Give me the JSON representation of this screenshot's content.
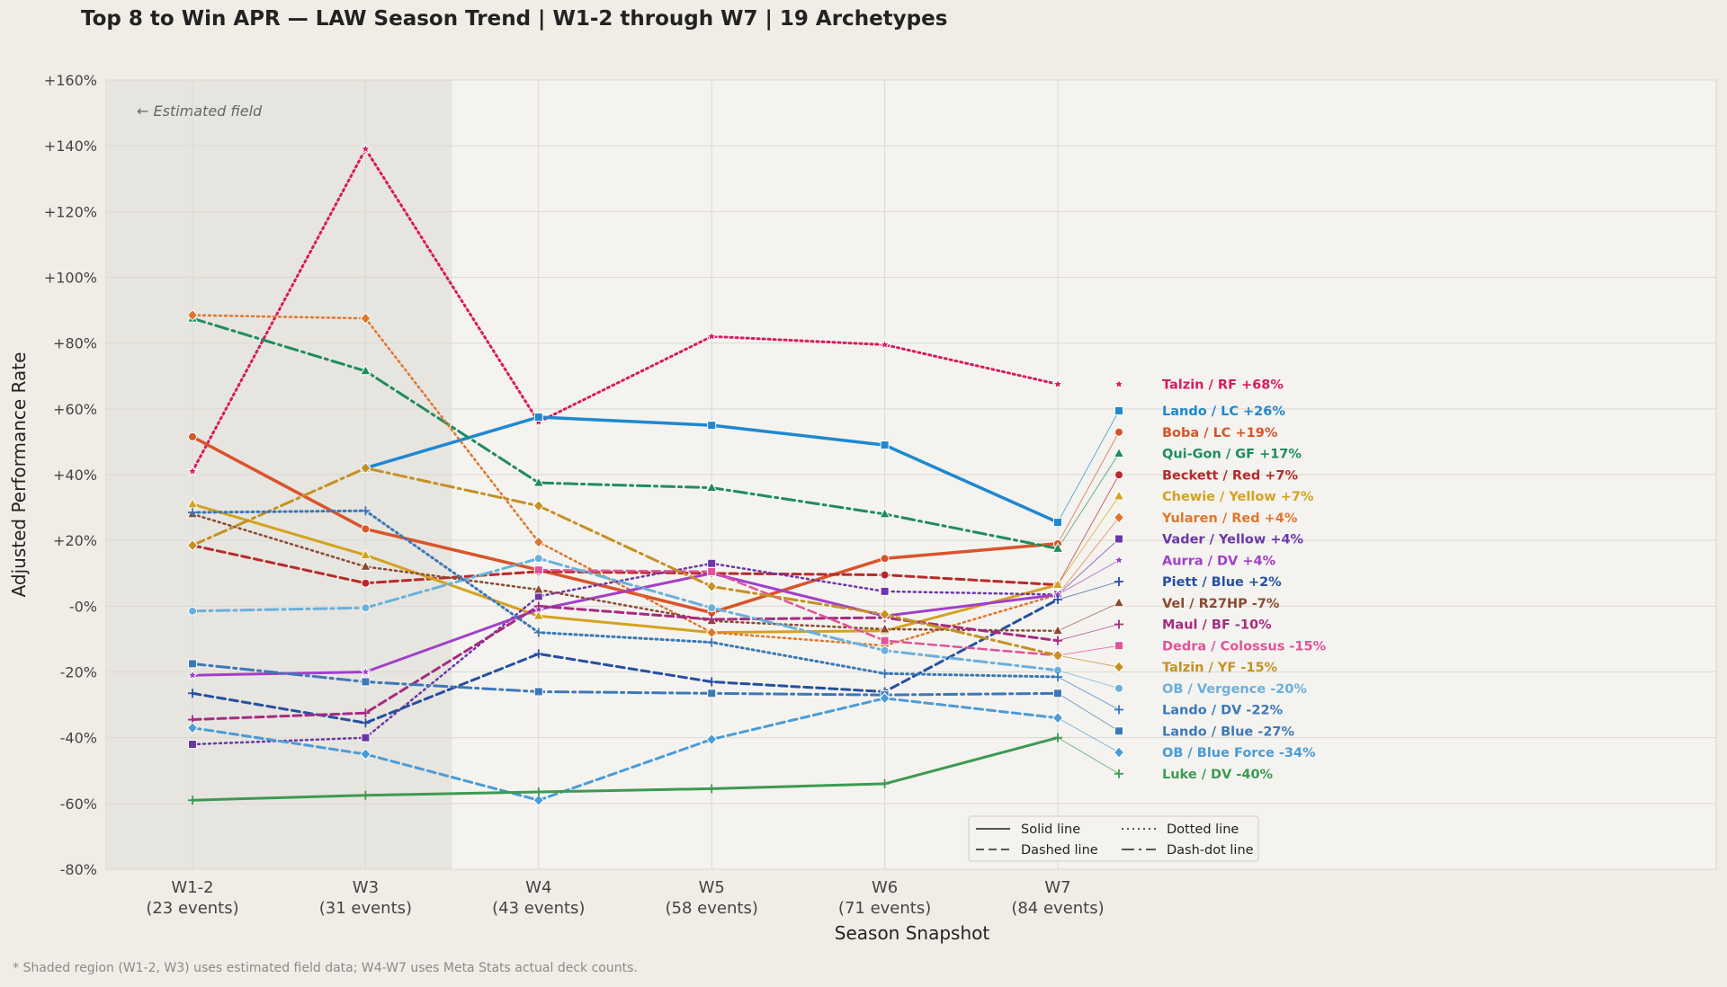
{
  "title": "Top 8 to Win APR — LAW Season Trend  |  W1-2 through W7  |  19 Archetypes",
  "footnote": "* Shaded region (W1-2, W3) uses estimated field data; W4-W7 uses Meta Stats actual deck counts.",
  "chart_data": {
    "type": "line",
    "title": "Top 8 to Win APR — LAW Season Trend  |  W1-2 through W7  |  19 Archetypes",
    "xlabel": "Season Snapshot",
    "ylabel": "Adjusted Performance Rate",
    "categories": [
      "W1-2",
      "W3",
      "W4",
      "W5",
      "W6",
      "W7"
    ],
    "category_sublabels": [
      "(23 events)",
      "(31 events)",
      "(43 events)",
      "(58 events)",
      "(71 events)",
      "(84 events)"
    ],
    "ylim": [
      -80,
      160
    ],
    "yticks": [
      -80,
      -60,
      -40,
      -20,
      0,
      20,
      40,
      60,
      80,
      100,
      120,
      140,
      160
    ],
    "ytick_labels": [
      "-80%",
      "-60%",
      "-40%",
      "-20%",
      "-0%",
      "+20%",
      "+40%",
      "+60%",
      "+80%",
      "+100%",
      "+120%",
      "+140%",
      "+160%"
    ],
    "grid": true,
    "shaded_region": {
      "from": "W1-2",
      "to": "W3",
      "label": "← Estimated field"
    },
    "legend_position": "bottom-center",
    "legend": [
      {
        "label": "Solid line",
        "style": "solid"
      },
      {
        "label": "Dotted line",
        "style": "dotted"
      },
      {
        "label": "Dashed line",
        "style": "dashed"
      },
      {
        "label": "Dash-dot line",
        "style": "dashdot"
      }
    ],
    "series": [
      {
        "name": "Talzin / RF",
        "end_label": "Talzin / RF  +68%",
        "color": "#d81b60",
        "style": "dotted",
        "marker": "star",
        "width": 3,
        "values": [
          41,
          139,
          56,
          82,
          79.5,
          67.5
        ]
      },
      {
        "name": "Lando / LC",
        "end_label": "Lando / LC  +26%",
        "color": "#1e88d0",
        "style": "solid",
        "marker": "square",
        "width": 3.5,
        "values": [
          null,
          42,
          57.5,
          55,
          49,
          25.5
        ]
      },
      {
        "name": "Boba / LC",
        "end_label": "Boba / LC  +19%",
        "color": "#d9542b",
        "style": "solid",
        "marker": "circle",
        "width": 3.5,
        "values": [
          51.5,
          23.5,
          11,
          -2,
          14.5,
          19
        ]
      },
      {
        "name": "Qui-Gon / GF",
        "end_label": "Qui-Gon / GF  +17%",
        "color": "#1f8c5e",
        "style": "dashdot",
        "marker": "triangle",
        "width": 3,
        "values": [
          87.5,
          71.5,
          37.5,
          36,
          28,
          17.5
        ]
      },
      {
        "name": "Beckett / Red",
        "end_label": "Beckett / Red  +7%",
        "color": "#b72a2a",
        "style": "dashed",
        "marker": "circle",
        "width": 3,
        "values": [
          18.5,
          7,
          10.5,
          10,
          9.5,
          6.5
        ]
      },
      {
        "name": "Chewie / Yellow",
        "end_label": "Chewie / Yellow  +7%",
        "color": "#d4a21f",
        "style": "solid",
        "marker": "triangle",
        "width": 3,
        "values": [
          31,
          15.5,
          -3,
          -8,
          -7.5,
          6.5
        ]
      },
      {
        "name": "Yularen / Red",
        "end_label": "Yularen / Red  +4%",
        "color": "#e0762e",
        "style": "dotted",
        "marker": "diamond",
        "width": 2.5,
        "values": [
          88.5,
          87.5,
          19.5,
          -8,
          -12,
          3.5
        ]
      },
      {
        "name": "Vader / Yellow",
        "end_label": "Vader / Yellow  +4%",
        "color": "#6b37a8",
        "style": "dotted",
        "marker": "square",
        "width": 2.5,
        "values": [
          -42,
          -40,
          3,
          13,
          4.5,
          3.5
        ]
      },
      {
        "name": "Aurra / DV",
        "end_label": "Aurra / DV  +4%",
        "color": "#a23fc9",
        "style": "solid",
        "marker": "star",
        "width": 3,
        "values": [
          -21,
          -20,
          -1,
          10,
          -3,
          3.5
        ]
      },
      {
        "name": "Piett / Blue",
        "end_label": "Piett / Blue  +2%",
        "color": "#2650a0",
        "style": "dashed",
        "marker": "plus",
        "width": 3,
        "values": [
          -26.5,
          -35.5,
          -14.5,
          -23,
          -26,
          2
        ]
      },
      {
        "name": "Vel / R27HP",
        "end_label": "Vel / R27HP  -7%",
        "color": "#8a4a32",
        "style": "dotted",
        "marker": "triangle",
        "width": 2.5,
        "values": [
          28,
          12,
          5,
          -4.5,
          -7,
          -7.5
        ]
      },
      {
        "name": "Maul / BF",
        "end_label": "Maul / BF  -10%",
        "color": "#a62b80",
        "style": "dashed",
        "marker": "plus",
        "width": 3,
        "values": [
          -34.5,
          -32.5,
          0,
          -4,
          -3.5,
          -10.5
        ]
      },
      {
        "name": "Dedra / Colossus",
        "end_label": "Dedra / Colossus  -15%",
        "color": "#e0539a",
        "style": "dashed",
        "marker": "square",
        "width": 2.5,
        "values": [
          null,
          null,
          11,
          10.5,
          -10.5,
          -15
        ]
      },
      {
        "name": "Talzin / YF",
        "end_label": "Talzin / YF  -15%",
        "color": "#c49122",
        "style": "dashdot",
        "marker": "diamond",
        "width": 3,
        "values": [
          18.5,
          42,
          30.5,
          6,
          -2.5,
          -15
        ]
      },
      {
        "name": "OB / Vergence",
        "end_label": "OB / Vergence  -20%",
        "color": "#6ab0db",
        "style": "dashdot",
        "marker": "circle",
        "width": 3,
        "values": [
          -1.5,
          -0.5,
          14.5,
          -0.5,
          -13.5,
          -19.5
        ]
      },
      {
        "name": "Lando / DV",
        "end_label": "Lando / DV  -22%",
        "color": "#3a78b8",
        "style": "dotted",
        "marker": "plus",
        "width": 3,
        "values": [
          28.5,
          29,
          -8,
          -11,
          -20.5,
          -21.5
        ]
      },
      {
        "name": "Lando / Blue",
        "end_label": "Lando / Blue  -27%",
        "color": "#3d78b8",
        "style": "dashdot",
        "marker": "square",
        "width": 3,
        "values": [
          -17.5,
          -23,
          -26,
          -26.5,
          -27,
          -26.5
        ]
      },
      {
        "name": "OB / Blue Force",
        "end_label": "OB / Blue Force  -34%",
        "color": "#4a9bd8",
        "style": "dashed",
        "marker": "diamond",
        "width": 3,
        "values": [
          -37,
          -45,
          -59,
          -40.5,
          -28,
          -34
        ]
      },
      {
        "name": "Luke / DV",
        "end_label": "Luke / DV  -40%",
        "color": "#3d9a52",
        "style": "solid",
        "marker": "plus",
        "width": 3,
        "values": [
          -59,
          -57.5,
          -56.5,
          -55.5,
          -54,
          -40
        ]
      }
    ]
  }
}
